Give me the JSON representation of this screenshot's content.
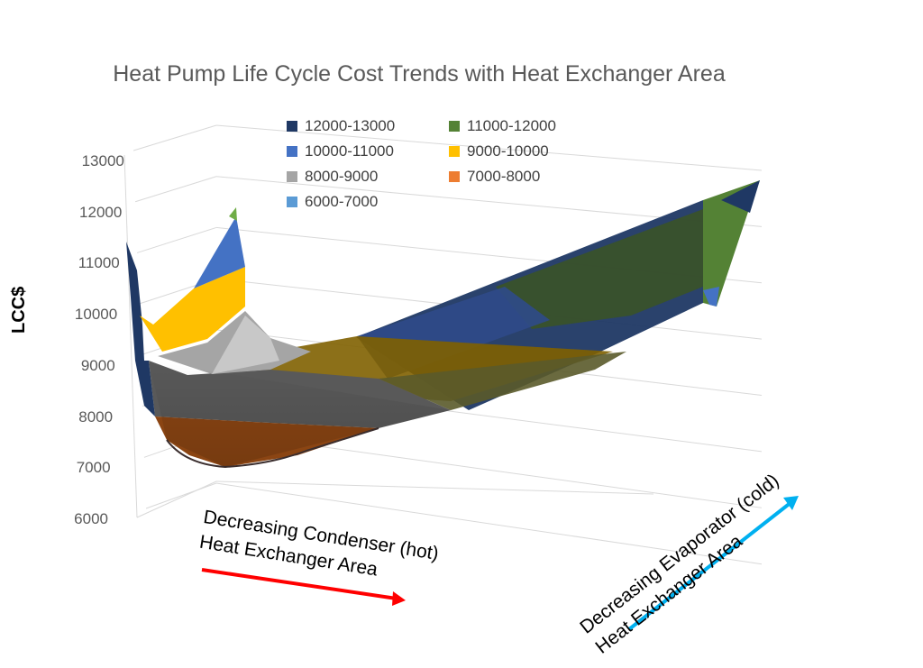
{
  "chart_data": {
    "type": "surface",
    "title": "Heat Pump Life Cycle Cost Trends with Heat Exchanger Area",
    "ylabel": "LCC$",
    "xlabel": "Decreasing Condenser (hot) Heat Exchanger Area",
    "zlabel": "Decreasing Evaporator (cold) Heat Exchanger Area",
    "ylim": [
      6000,
      13000
    ],
    "yticks": [
      "13000",
      "12000",
      "11000",
      "10000",
      "9000",
      "8000",
      "7000",
      "6000"
    ],
    "legend": [
      {
        "label": "12000-13000",
        "color": "#1f3864"
      },
      {
        "label": "11000-12000",
        "color": "#548235"
      },
      {
        "label": "10000-11000",
        "color": "#4472c4"
      },
      {
        "label": "9000-10000",
        "color": "#ffc000"
      },
      {
        "label": "8000-9000",
        "color": "#a5a5a5"
      },
      {
        "label": "7000-8000",
        "color": "#ed7d31"
      },
      {
        "label": "6000-7000",
        "color": "#5b9bd5"
      }
    ],
    "surface": {
      "condenser_profile_lcc": [
        11600,
        8100,
        7000,
        6950,
        7200,
        7800,
        8600
      ],
      "evaporator_end_lcc": [
        12800,
        10300,
        8800
      ],
      "min_lcc": 6900
    }
  },
  "colors": {
    "grid": "#d9d9d9",
    "condenser_arrow": "#ff0000",
    "evaporator_arrow": "#00b0f0"
  }
}
